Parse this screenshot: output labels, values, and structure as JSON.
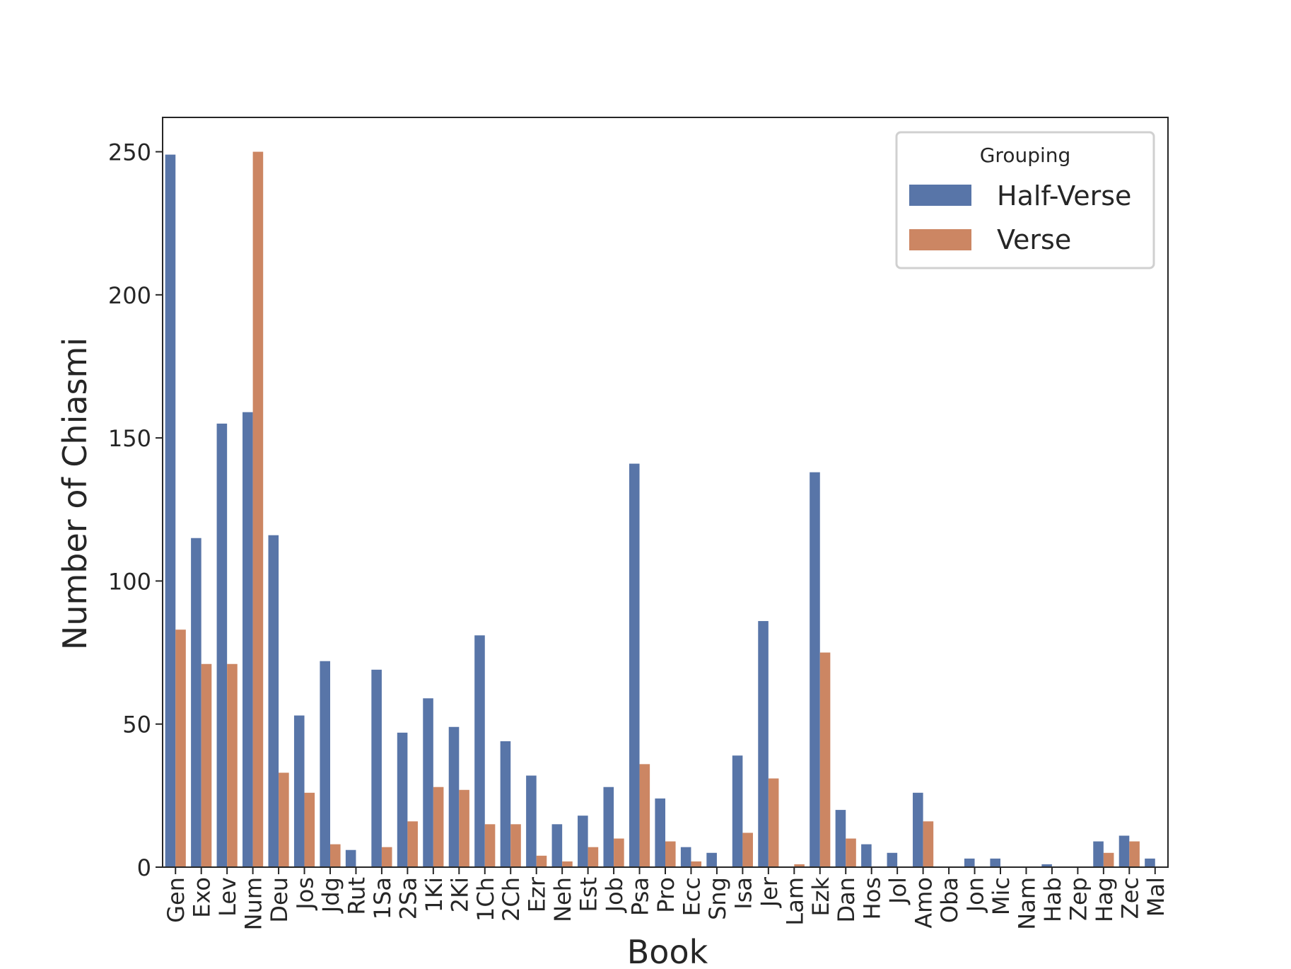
{
  "chart_data": {
    "type": "bar",
    "title": "",
    "xlabel": "Book",
    "ylabel": "Number of Chiasmi",
    "ylim": [
      0,
      262
    ],
    "yticks": [
      0,
      50,
      100,
      150,
      200,
      250
    ],
    "grid": false,
    "legend": {
      "title": "Grouping",
      "placement": "top-right"
    },
    "categories": [
      "Gen",
      "Exo",
      "Lev",
      "Num",
      "Deu",
      "Jos",
      "Jdg",
      "Rut",
      "1Sa",
      "2Sa",
      "1Ki",
      "2Ki",
      "1Ch",
      "2Ch",
      "Ezr",
      "Neh",
      "Est",
      "Job",
      "Psa",
      "Pro",
      "Ecc",
      "Sng",
      "Isa",
      "Jer",
      "Lam",
      "Ezk",
      "Dan",
      "Hos",
      "Jol",
      "Amo",
      "Oba",
      "Jon",
      "Mic",
      "Nam",
      "Hab",
      "Zep",
      "Hag",
      "Zec",
      "Mal"
    ],
    "series": [
      {
        "name": "Half-Verse",
        "color": "#5875a8",
        "values": [
          249,
          115,
          155,
          159,
          116,
          53,
          72,
          6,
          69,
          47,
          59,
          49,
          81,
          44,
          32,
          15,
          18,
          28,
          141,
          24,
          7,
          5,
          39,
          86,
          0,
          138,
          20,
          8,
          5,
          26,
          0,
          3,
          3,
          0,
          1,
          0,
          9,
          11,
          3
        ]
      },
      {
        "name": "Verse",
        "color": "#cc8663",
        "values": [
          83,
          71,
          71,
          250,
          33,
          26,
          8,
          0,
          7,
          16,
          28,
          27,
          15,
          15,
          4,
          2,
          7,
          10,
          36,
          9,
          2,
          0,
          12,
          31,
          1,
          75,
          10,
          0,
          0,
          16,
          0,
          0,
          0,
          0,
          0,
          0,
          5,
          9,
          0
        ]
      }
    ]
  }
}
